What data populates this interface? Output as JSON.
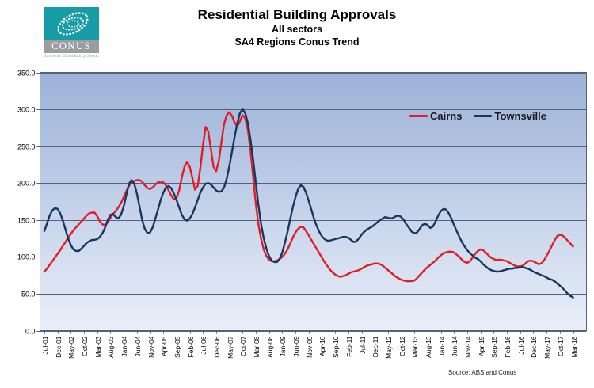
{
  "logo": {
    "text": "CONUS",
    "caption": "Business Consultancy Services",
    "teal_color": "#169ca6",
    "gray_color": "#9b9da0"
  },
  "header": {
    "title": "Residential Building Approvals",
    "subtitle1": "All sectors",
    "subtitle2": "SA4 Regions Conus Trend"
  },
  "footer": {
    "source": "Source: ABS and Conus"
  },
  "chart_data": {
    "type": "line",
    "title": "Residential Building Approvals",
    "subtitle": "All sectors — SA4 Regions Conus Trend",
    "x_frequency": "monthly",
    "x_start": "Jul-01",
    "x_end": "Mar-18",
    "x_tick_every_months": 5,
    "x_tick_labels": [
      "Jul-01",
      "Dec-01",
      "May-02",
      "Oct-02",
      "Mar-03",
      "Aug-03",
      "Jan-04",
      "Jun-04",
      "Nov-04",
      "Apr-05",
      "Sep-05",
      "Feb-06",
      "Jul-06",
      "Dec-06",
      "May-07",
      "Oct-07",
      "Mar-08",
      "Aug-08",
      "Jan-09",
      "Jun-09",
      "Nov-09",
      "Apr-10",
      "Sep-10",
      "Feb-11",
      "Jul-11",
      "Dec-11",
      "May-12",
      "Oct-12",
      "Mar-13",
      "Aug-13",
      "Jan-14",
      "Jun-14",
      "Nov-14",
      "Apr-15",
      "Sep-15",
      "Feb-16",
      "Jul-16",
      "Dec-16",
      "May-17",
      "Oct-17",
      "Mar-18"
    ],
    "ylim": [
      0,
      350
    ],
    "ytick_step": 50,
    "ytick_decimals": 1,
    "grid": true,
    "grid_color": "#55627f",
    "plot_bg_gradient_top": "#9cb2d8",
    "plot_bg_gradient_bottom": "#e9eff9",
    "legend_position": "inside-top-right",
    "series": [
      {
        "name": "Cairns",
        "color": "#e21d25",
        "values": [
          80,
          84,
          89,
          94,
          99,
          104,
          109,
          115,
          120,
          126,
          131,
          136,
          140,
          144,
          148,
          152,
          156,
          159,
          160,
          160,
          155,
          148,
          144,
          143,
          147,
          153,
          158,
          162,
          167,
          173,
          181,
          189,
          196,
          201,
          203,
          204,
          204,
          202,
          197,
          193,
          192,
          194,
          198,
          201,
          202,
          201,
          197,
          190,
          183,
          178,
          180,
          190,
          208,
          222,
          229,
          222,
          207,
          191,
          196,
          220,
          252,
          276,
          270,
          246,
          222,
          216,
          230,
          256,
          280,
          292,
          296,
          291,
          282,
          277,
          284,
          292,
          288,
          272,
          244,
          208,
          172,
          144,
          124,
          110,
          101,
          96,
          94,
          94,
          95,
          97,
          100,
          104,
          110,
          118,
          126,
          133,
          138,
          141,
          140,
          135,
          129,
          123,
          117,
          111,
          105,
          99,
          93,
          88,
          83,
          79,
          76,
          74,
          73,
          74,
          75,
          77,
          79,
          80,
          81,
          82,
          84,
          86,
          88,
          89,
          90,
          91,
          91,
          90,
          88,
          85,
          82,
          79,
          76,
          73,
          71,
          69,
          68,
          67,
          67,
          67,
          68,
          71,
          75,
          79,
          83,
          86,
          89,
          92,
          95,
          99,
          102,
          105,
          106,
          107,
          107,
          106,
          103,
          100,
          96,
          93,
          92,
          94,
          99,
          104,
          108,
          110,
          109,
          106,
          102,
          99,
          97,
          96,
          96,
          96,
          95,
          94,
          92,
          90,
          88,
          87,
          87,
          88,
          91,
          94,
          95,
          94,
          92,
          90,
          91,
          95,
          101,
          108,
          115,
          122,
          128,
          130,
          129,
          126,
          122,
          118,
          114
        ]
      },
      {
        "name": "Townsville",
        "color": "#17375e",
        "values": [
          135,
          145,
          156,
          163,
          166,
          165,
          159,
          149,
          137,
          125,
          116,
          110,
          108,
          108,
          111,
          115,
          119,
          121,
          123,
          123,
          124,
          127,
          132,
          140,
          150,
          157,
          158,
          154,
          152,
          157,
          168,
          184,
          199,
          204,
          199,
          186,
          168,
          150,
          138,
          132,
          133,
          140,
          152,
          164,
          177,
          187,
          194,
          196,
          193,
          186,
          177,
          167,
          157,
          151,
          149,
          152,
          158,
          167,
          177,
          187,
          194,
          199,
          200,
          198,
          194,
          190,
          188,
          189,
          194,
          206,
          223,
          243,
          263,
          281,
          295,
          300,
          295,
          281,
          259,
          231,
          200,
          170,
          144,
          125,
          111,
          101,
          95,
          93,
          93,
          97,
          106,
          119,
          134,
          151,
          167,
          181,
          192,
          197,
          195,
          187,
          176,
          164,
          152,
          142,
          134,
          128,
          124,
          122,
          122,
          123,
          124,
          125,
          126,
          127,
          127,
          126,
          123,
          120,
          121,
          125,
          130,
          134,
          137,
          139,
          141,
          144,
          147,
          150,
          152,
          154,
          153,
          152,
          153,
          155,
          156,
          154,
          150,
          144,
          139,
          134,
          132,
          133,
          138,
          143,
          145,
          143,
          139,
          141,
          148,
          156,
          162,
          165,
          164,
          159,
          152,
          143,
          135,
          127,
          120,
          114,
          109,
          105,
          102,
          99,
          97,
          94,
          90,
          87,
          84,
          82,
          81,
          80,
          80,
          81,
          82,
          83,
          84,
          84,
          85,
          85,
          86,
          86,
          85,
          84,
          82,
          80,
          78,
          77,
          75,
          74,
          72,
          70,
          69,
          67,
          64,
          61,
          58,
          54,
          50,
          47,
          45
        ]
      }
    ]
  }
}
